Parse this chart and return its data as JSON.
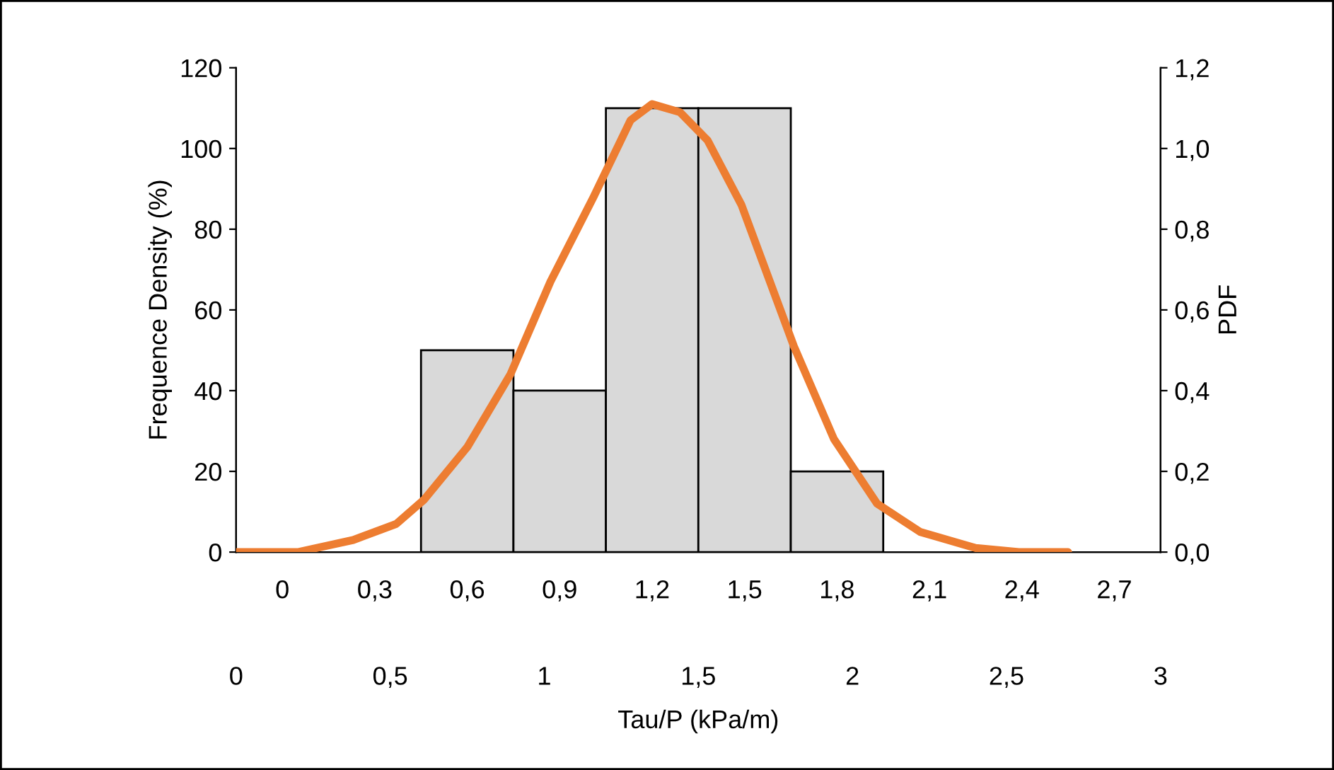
{
  "chart_data": {
    "type": "histogram",
    "bins": [
      0.6,
      0.9,
      1.2,
      1.5,
      1.8,
      2.1
    ],
    "values": [
      50,
      40,
      110,
      110,
      20
    ],
    "color": "#d9d9d9",
    "series": [
      {
        "type": "line",
        "axis": "y2",
        "color": "#ed7d31",
        "x": [
          0,
          0.2,
          0.38,
          0.52,
          0.61,
          0.75,
          0.89,
          1.02,
          1.16,
          1.28,
          1.35,
          1.44,
          1.53,
          1.64,
          1.81,
          1.94,
          2.08,
          2.22,
          2.4,
          2.54,
          2.7
        ],
        "values": [
          0,
          0,
          0.03,
          0.07,
          0.13,
          0.26,
          0.44,
          0.67,
          0.88,
          1.07,
          1.11,
          1.09,
          1.02,
          0.86,
          0.51,
          0.28,
          0.12,
          0.05,
          0.01,
          0,
          0
        ]
      }
    ],
    "xlabel": "Tau/P (kPa/m)",
    "ylabel": "Frequence Density (%)",
    "y2label": "PDF",
    "xlim": [
      0,
      3
    ],
    "xticks": [
      0,
      {
        "value": 0.5,
        "label": "0,5"
      },
      1,
      {
        "value": 1.5,
        "label": "1,5"
      },
      2,
      {
        "value": 2.5,
        "label": "2,5"
      },
      3
    ],
    "x2lim": [
      -0.15,
      2.85
    ],
    "x2ticks": [
      0,
      {
        "value": 0.3,
        "label": "0,3"
      },
      {
        "value": 0.6,
        "label": "0,6"
      },
      {
        "value": 0.9,
        "label": "0,9"
      },
      {
        "value": 1.2,
        "label": "1,2"
      },
      {
        "value": 1.5,
        "label": "1,5"
      },
      {
        "value": 1.8,
        "label": "1,8"
      },
      {
        "value": 2.1,
        "label": "2,1"
      },
      {
        "value": 2.4,
        "label": "2,4"
      },
      {
        "value": 2.7,
        "label": "2,7"
      }
    ],
    "ylim": [
      0,
      120
    ],
    "yticks": [
      0,
      20,
      40,
      60,
      80,
      100,
      120
    ],
    "y2lim": [
      0,
      1.2
    ],
    "y2ticks": [
      {
        "value": 0,
        "label": "0,0"
      },
      {
        "value": 0.2,
        "label": "0,2"
      },
      {
        "value": 0.4,
        "label": "0,4"
      },
      {
        "value": 0.6,
        "label": "0,6"
      },
      {
        "value": 0.8,
        "label": "0,8"
      },
      {
        "value": 1.0,
        "label": "1,0"
      },
      {
        "value": 1.2,
        "label": "1,2"
      }
    ],
    "grid": false
  }
}
